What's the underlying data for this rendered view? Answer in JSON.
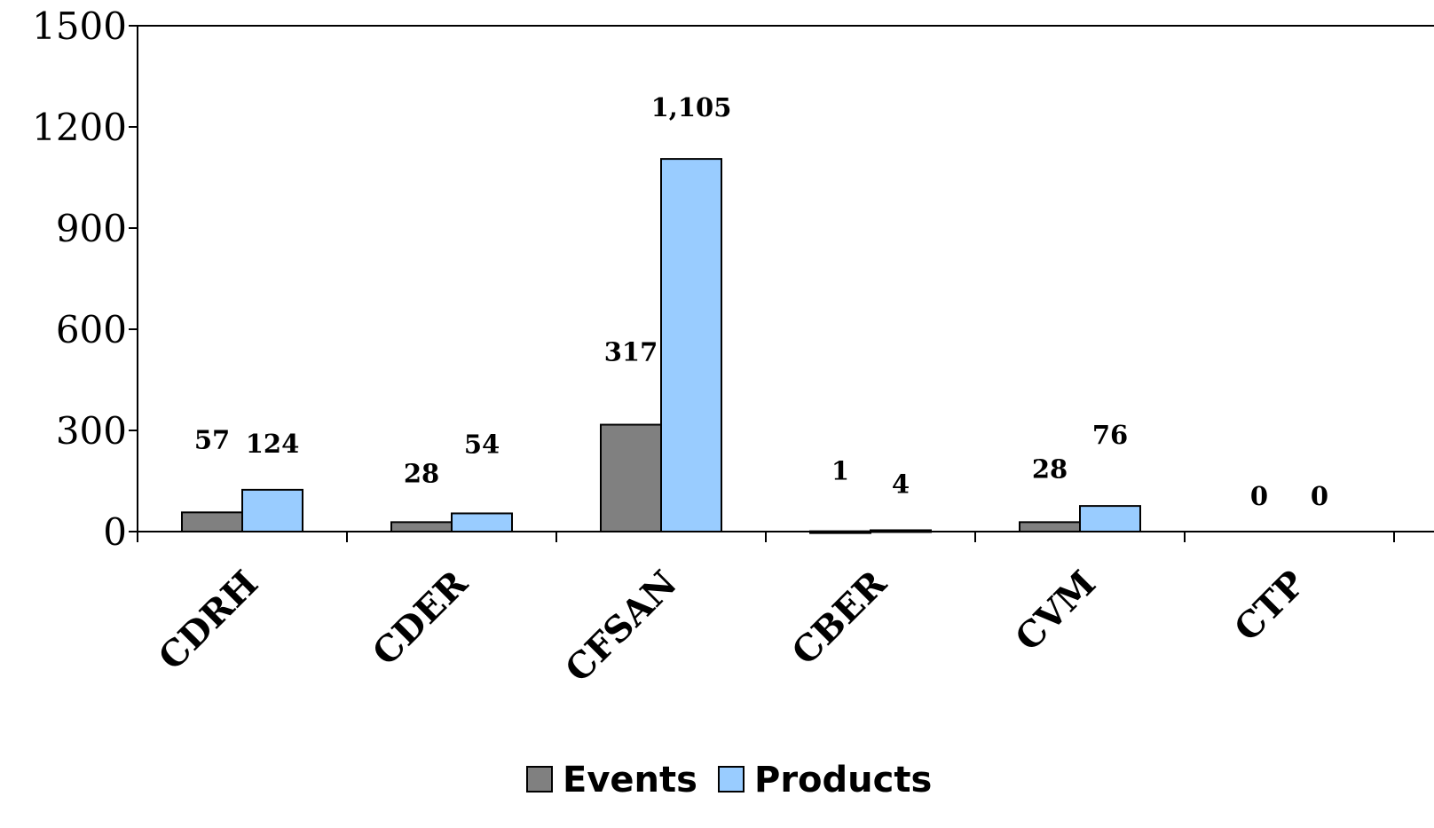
{
  "chart_data": {
    "type": "bar",
    "categories": [
      "CDRH",
      "CDER",
      "CFSAN",
      "CBER",
      "CVM",
      "CTP"
    ],
    "series": [
      {
        "name": "Events",
        "values": [
          57,
          28,
          317,
          1,
          28,
          0
        ],
        "labels": [
          "57",
          "28",
          "317",
          "1",
          "28",
          "0"
        ],
        "color": "#808080"
      },
      {
        "name": "Products",
        "values": [
          124,
          54,
          1105,
          4,
          76,
          0
        ],
        "labels": [
          "124",
          "54",
          "1,105",
          "4",
          "76",
          "0"
        ],
        "color": "#99ccff"
      }
    ],
    "ylim": [
      0,
      1500
    ],
    "yticks": [
      "0",
      "300",
      "600",
      "900",
      "1200",
      "1500"
    ],
    "grid": false,
    "legend_position": "bottom"
  }
}
